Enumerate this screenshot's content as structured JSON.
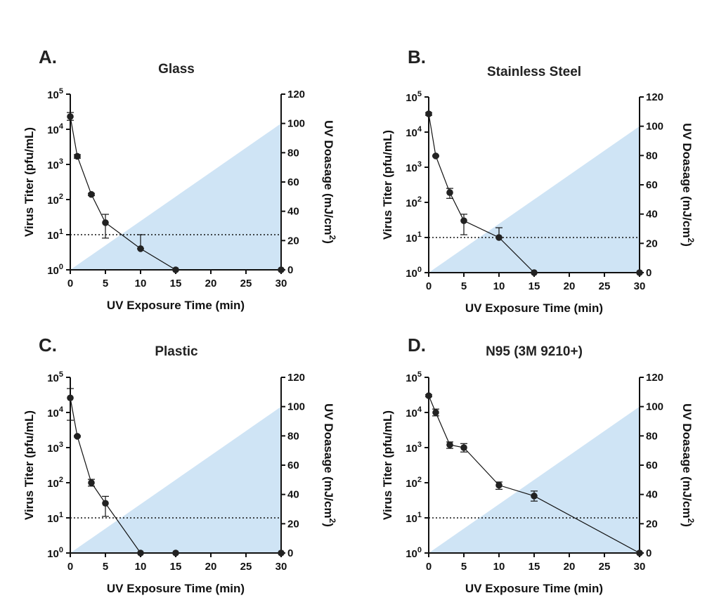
{
  "colors": {
    "uv_fill": "#cfe4f5",
    "line": "#111111",
    "marker": "#222222"
  },
  "chart_data": [
    {
      "type": "line",
      "panel_label": "A.",
      "title": "Glass",
      "xlabel": "UV Exposure Time (min)",
      "ylabel": "Virus Titer (pfu/mL)",
      "y2label_main": "UV Doasage (mJ/cm",
      "y2label_sup": "2",
      "y2label_close": ")",
      "xticks": [
        "0",
        "5",
        "10",
        "15",
        "20",
        "25",
        "30"
      ],
      "xlim": [
        0,
        30
      ],
      "yscale": "log",
      "ylim": [
        1,
        100000
      ],
      "yticks": [
        {
          "base": "10",
          "exp": "0"
        },
        {
          "base": "10",
          "exp": "1"
        },
        {
          "base": "10",
          "exp": "2"
        },
        {
          "base": "10",
          "exp": "3"
        },
        {
          "base": "10",
          "exp": "4"
        },
        {
          "base": "10",
          "exp": "5"
        }
      ],
      "y2lim": [
        0,
        120
      ],
      "y2ticks": [
        "0",
        "20",
        "40",
        "60",
        "80",
        "100",
        "120"
      ],
      "limit_of_detection": 10,
      "uv_dosage": {
        "x": [
          0,
          30
        ],
        "y": [
          0,
          100
        ]
      },
      "series": [
        {
          "x": [
            0,
            1,
            3,
            5,
            10,
            15,
            30
          ],
          "y": [
            23000,
            1700,
            140,
            22,
            4,
            1,
            1
          ],
          "err_low": [
            18000,
            1500,
            130,
            8,
            4,
            null,
            null
          ],
          "err_high": [
            30000,
            1900,
            150,
            38,
            10,
            null,
            null
          ]
        }
      ]
    },
    {
      "type": "line",
      "panel_label": "B.",
      "title": "Stainless Steel",
      "xlabel": "UV Exposure Time (min)",
      "ylabel": "Virus Titer (pfu/mL)",
      "y2label_main": "UV Doasage (mJ/cm",
      "y2label_sup": "2",
      "y2label_close": ")",
      "xticks": [
        "0",
        "5",
        "10",
        "15",
        "20",
        "25",
        "30"
      ],
      "xlim": [
        0,
        30
      ],
      "yscale": "log",
      "ylim": [
        1,
        100000
      ],
      "yticks": [
        {
          "base": "10",
          "exp": "0"
        },
        {
          "base": "10",
          "exp": "1"
        },
        {
          "base": "10",
          "exp": "2"
        },
        {
          "base": "10",
          "exp": "3"
        },
        {
          "base": "10",
          "exp": "4"
        },
        {
          "base": "10",
          "exp": "5"
        }
      ],
      "y2lim": [
        0,
        120
      ],
      "y2ticks": [
        "0",
        "20",
        "40",
        "60",
        "80",
        "100",
        "120"
      ],
      "limit_of_detection": 10,
      "uv_dosage": {
        "x": [
          0,
          30
        ],
        "y": [
          0,
          100
        ]
      },
      "series": [
        {
          "x": [
            0,
            1,
            3,
            5,
            10,
            15,
            30
          ],
          "y": [
            33000,
            2100,
            190,
            30,
            10,
            1,
            1
          ],
          "err_low": [
            30000,
            2000,
            130,
            12,
            10,
            null,
            null
          ],
          "err_high": [
            36000,
            2200,
            250,
            46,
            19,
            null,
            null
          ]
        }
      ]
    },
    {
      "type": "line",
      "panel_label": "C.",
      "title": "Plastic",
      "xlabel": "UV Exposure Time (min)",
      "ylabel": "Virus Titer (pfu/mL)",
      "y2label_main": "UV Doasage (mJ/cm",
      "y2label_sup": "2",
      "y2label_close": ")",
      "xticks": [
        "0",
        "5",
        "10",
        "15",
        "20",
        "25",
        "30"
      ],
      "xlim": [
        0,
        30
      ],
      "yscale": "log",
      "ylim": [
        1,
        100000
      ],
      "yticks": [
        {
          "base": "10",
          "exp": "0"
        },
        {
          "base": "10",
          "exp": "1"
        },
        {
          "base": "10",
          "exp": "2"
        },
        {
          "base": "10",
          "exp": "3"
        },
        {
          "base": "10",
          "exp": "4"
        },
        {
          "base": "10",
          "exp": "5"
        }
      ],
      "y2lim": [
        0,
        120
      ],
      "y2ticks": [
        "0",
        "20",
        "40",
        "60",
        "80",
        "100",
        "120"
      ],
      "limit_of_detection": 10,
      "uv_dosage": {
        "x": [
          0,
          30
        ],
        "y": [
          0,
          100
        ]
      },
      "series": [
        {
          "x": [
            0,
            1,
            3,
            5,
            10,
            15,
            30
          ],
          "y": [
            26000,
            2100,
            100,
            26,
            1,
            1,
            1
          ],
          "err_low": [
            6000,
            2000,
            80,
            11,
            null,
            null,
            null
          ],
          "err_high": [
            48000,
            2200,
            125,
            41,
            null,
            null,
            null
          ]
        }
      ]
    },
    {
      "type": "line",
      "panel_label": "D.",
      "title": "N95 (3M 9210+)",
      "xlabel": "UV Exposure Time (min)",
      "ylabel": "Virus Titer (pfu/mL)",
      "y2label_main": "UV Doasage (mJ/cm",
      "y2label_sup": "2",
      "y2label_close": ")",
      "xticks": [
        "0",
        "5",
        "10",
        "15",
        "20",
        "25",
        "30"
      ],
      "xlim": [
        0,
        30
      ],
      "yscale": "log",
      "ylim": [
        1,
        100000
      ],
      "yticks": [
        {
          "base": "10",
          "exp": "0"
        },
        {
          "base": "10",
          "exp": "1"
        },
        {
          "base": "10",
          "exp": "2"
        },
        {
          "base": "10",
          "exp": "3"
        },
        {
          "base": "10",
          "exp": "4"
        },
        {
          "base": "10",
          "exp": "5"
        }
      ],
      "y2lim": [
        0,
        120
      ],
      "y2ticks": [
        "0",
        "20",
        "40",
        "60",
        "80",
        "100",
        "120"
      ],
      "limit_of_detection": 10,
      "uv_dosage": {
        "x": [
          0,
          30
        ],
        "y": [
          0,
          100
        ]
      },
      "series": [
        {
          "x": [
            0,
            1,
            3,
            5,
            10,
            15,
            30
          ],
          "y": [
            30000,
            10000,
            1200,
            1000,
            85,
            42,
            1
          ],
          "err_low": [
            28000,
            8000,
            950,
            750,
            65,
            30,
            null
          ],
          "err_high": [
            32000,
            12500,
            1450,
            1300,
            105,
            58,
            null
          ]
        }
      ]
    }
  ]
}
